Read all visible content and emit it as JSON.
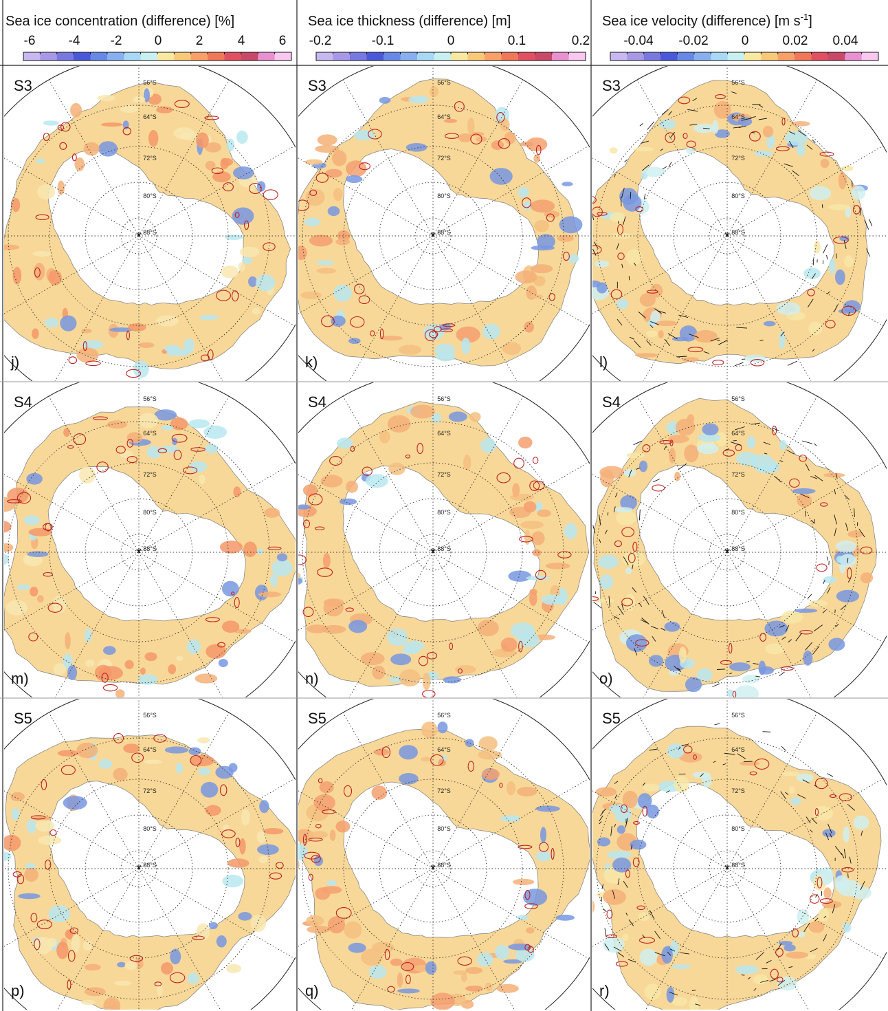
{
  "headers": [
    {
      "title": "Sea ice concentration (difference)  [%]",
      "ticks": [
        "-6",
        "-4",
        "-2",
        "0",
        "2",
        "4",
        "6"
      ]
    },
    {
      "title": "Sea ice thickness (difference)  [m]",
      "ticks": [
        "-0.2",
        "-0.1",
        "0",
        "0.1",
        "0.2"
      ]
    },
    {
      "title_main": "Sea ice velocity (difference)  [m s",
      "title_sup": "-1",
      "title_end": "]",
      "ticks": [
        "-0.04",
        "-0.02",
        "0",
        "0.02",
        "0.04"
      ]
    }
  ],
  "colorbar": {
    "colors": [
      "#c8b8f0",
      "#a898e8",
      "#7878e0",
      "#4858d8",
      "#6888e8",
      "#88b0f0",
      "#a8d8f4",
      "#c8f0f0",
      "#f8e8a0",
      "#f8c878",
      "#f8a068",
      "#f07858",
      "#e05060",
      "#c84868",
      "#e890d0",
      "#f8c8f0"
    ]
  },
  "rows": [
    {
      "scenario": "S3",
      "panels": [
        "j)",
        "k)",
        "l)"
      ]
    },
    {
      "scenario": "S4",
      "panels": [
        "m)",
        "n)",
        "o)"
      ]
    },
    {
      "scenario": "S5",
      "panels": [
        "p)",
        "q)",
        "r)"
      ]
    }
  ],
  "grid": {
    "lat_labels": [
      "56°S",
      "64°S",
      "72°S",
      "80°S",
      "88°S"
    ],
    "lat_labels_display": [
      "56$^o$S",
      "64$^o$S",
      "72$^o$S",
      "80$^o$S",
      "88$^o$S"
    ]
  },
  "colors": {
    "ice_base": "#f8d898",
    "ice_warm": "#f4b078",
    "ice_cool": "#b8e8f0",
    "ice_blue": "#7898e0",
    "contour_red": "#c02020",
    "land": "#ffffff"
  }
}
